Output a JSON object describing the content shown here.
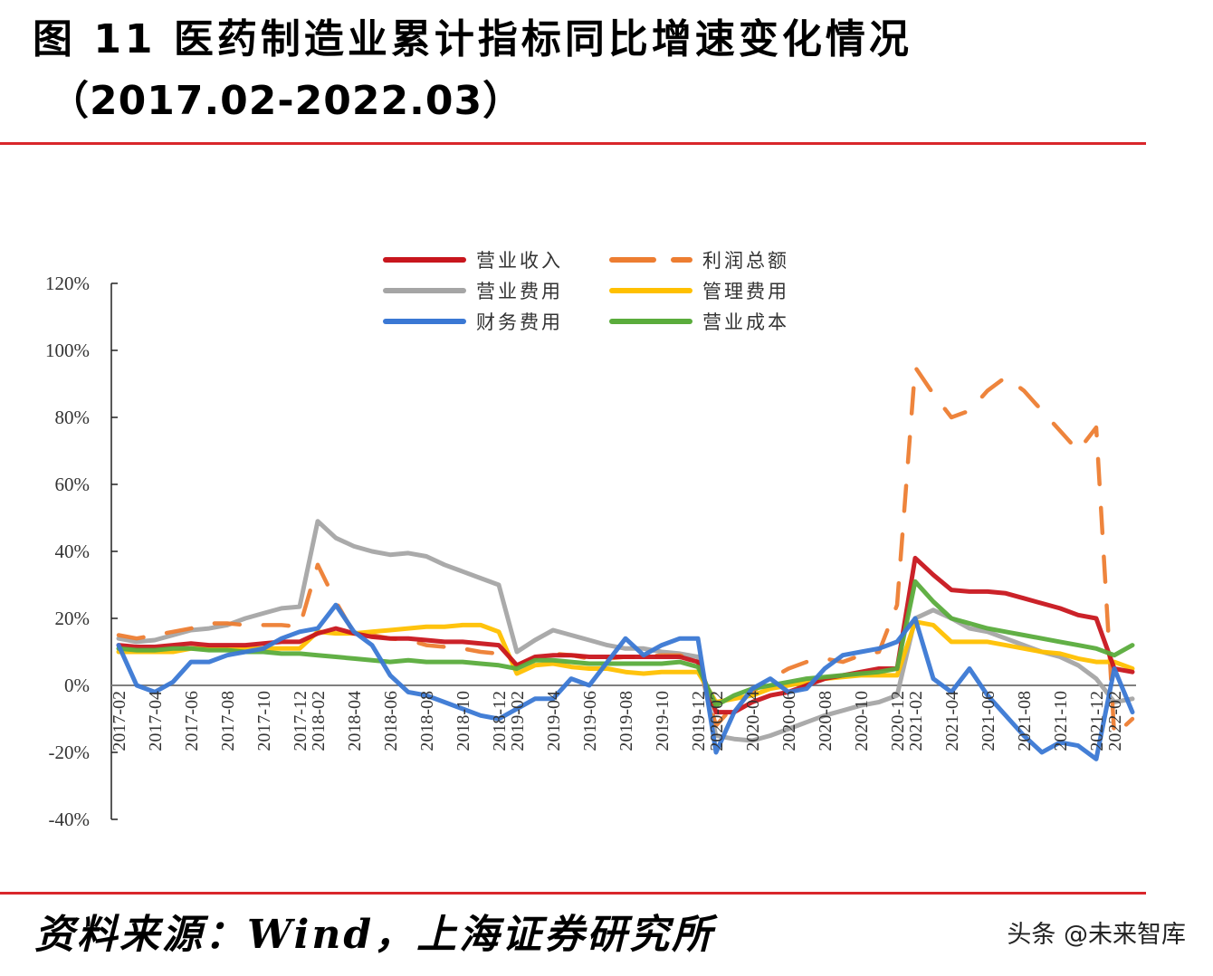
{
  "header": {
    "title_line1": "图 11 医药制造业累计指标同比增速变化情况",
    "title_line2": "（2017.02-2022.03）"
  },
  "footer": {
    "source": "资料来源：Wind，上海证券研究所",
    "watermark": "头条 @未来智库"
  },
  "colors": {
    "rule": "#d9262b",
    "revenue": "#c8161d",
    "profit": "#ed7d31",
    "selling_expense": "#a5a5a5",
    "admin_expense": "#ffc000",
    "finance_expense": "#3a78d4",
    "operating_cost": "#5aac3c"
  },
  "chart_data": {
    "type": "line",
    "title": "医药制造业累计指标同比增速变化情况（2017.02-2022.03）",
    "xlabel": "",
    "ylabel": "",
    "ylim": [
      -40,
      120
    ],
    "yticks": [
      "120%",
      "100%",
      "80%",
      "60%",
      "40%",
      "20%",
      "0%",
      "-20%",
      "-40%"
    ],
    "grid": false,
    "legend_position": "top-center",
    "x": [
      "2017-02",
      "2017-03",
      "2017-04",
      "2017-05",
      "2017-06",
      "2017-07",
      "2017-08",
      "2017-09",
      "2017-10",
      "2017-11",
      "2017-12",
      "2018-02",
      "2018-03",
      "2018-04",
      "2018-05",
      "2018-06",
      "2018-07",
      "2018-08",
      "2018-09",
      "2018-10",
      "2018-11",
      "2018-12",
      "2019-02",
      "2019-03",
      "2019-04",
      "2019-05",
      "2019-06",
      "2019-07",
      "2019-08",
      "2019-09",
      "2019-10",
      "2019-11",
      "2019-12",
      "2020-02",
      "2020-03",
      "2020-04",
      "2020-05",
      "2020-06",
      "2020-07",
      "2020-08",
      "2020-09",
      "2020-10",
      "2020-11",
      "2020-12",
      "2021-02",
      "2021-03",
      "2021-04",
      "2021-05",
      "2021-06",
      "2021-07",
      "2021-08",
      "2021-09",
      "2021-10",
      "2021-11",
      "2021-12",
      "2022-02",
      "2022-03"
    ],
    "xtick_labels": [
      "2017-02",
      "2017-04",
      "2017-06",
      "2017-08",
      "2017-10",
      "2017-12",
      "2018-02",
      "2018-04",
      "2018-06",
      "2018-08",
      "2018-10",
      "2018-12",
      "2019-02",
      "2019-04",
      "2019-06",
      "2019-08",
      "2019-10",
      "2019-12",
      "2020-02",
      "2020-04",
      "2020-06",
      "2020-08",
      "2020-10",
      "2020-12",
      "2021-02",
      "2021-04",
      "2021-06",
      "2021-08",
      "2021-10",
      "2021-12",
      "2022-02"
    ],
    "series": [
      {
        "name": "营业收入",
        "style": "solid",
        "values": [
          12,
          11.5,
          11.5,
          12,
          12.5,
          12,
          12,
          12,
          12.5,
          13,
          13,
          15.5,
          17,
          15.5,
          14.5,
          14,
          14,
          13.5,
          13,
          13,
          12.5,
          12,
          6,
          8.5,
          9,
          9,
          8.5,
          8.5,
          8.5,
          8.5,
          8.5,
          8.5,
          7,
          -8,
          -8,
          -5,
          -3,
          -2,
          0,
          2,
          3,
          4,
          5,
          5,
          38,
          33,
          28.5,
          28,
          28,
          27.5,
          26,
          24.5,
          23,
          21,
          20,
          5,
          4
        ]
      },
      {
        "name": "利润总额",
        "style": "dashed",
        "values": [
          15,
          14,
          15,
          16,
          17,
          18.5,
          18.5,
          18,
          18,
          18,
          17.5,
          36,
          25,
          15.5,
          15,
          14,
          13.5,
          12,
          11.5,
          11,
          10,
          9.5,
          6,
          8,
          9.5,
          9,
          8,
          8,
          8.5,
          8.5,
          9,
          9,
          7,
          -12,
          -6,
          -2,
          2,
          5,
          7,
          8,
          7,
          9,
          10,
          24,
          95,
          87,
          80,
          82,
          88,
          92,
          88,
          82,
          76,
          70,
          77,
          -15,
          -10
        ]
      },
      {
        "name": "营业费用",
        "style": "solid",
        "values": [
          14,
          13,
          13.5,
          15,
          16.5,
          17,
          18,
          20,
          21.5,
          23,
          23.5,
          49,
          44,
          41.5,
          40,
          39,
          39.5,
          38.5,
          36,
          34,
          32,
          30,
          10,
          13.5,
          16.5,
          15,
          13.5,
          12,
          11,
          11,
          10,
          9.5,
          8.5,
          -15,
          -16,
          -16.5,
          -15,
          -13,
          -11,
          -9,
          -7.5,
          -6,
          -5,
          -3,
          20,
          22.5,
          20,
          17,
          16,
          14,
          12,
          10,
          8.5,
          6,
          2,
          -5,
          -4
        ]
      },
      {
        "name": "管理费用",
        "style": "solid",
        "values": [
          10,
          10,
          10,
          10,
          11,
          11,
          11,
          11,
          11,
          11,
          11,
          16,
          15.5,
          15.5,
          16,
          16.5,
          17,
          17.5,
          17.5,
          18,
          18,
          16,
          3.5,
          6,
          6.5,
          5.5,
          5,
          5,
          4,
          3.5,
          4,
          4,
          4,
          -5,
          -4,
          -3,
          -1,
          0,
          1,
          2,
          2.5,
          3,
          3,
          3,
          19,
          18,
          13,
          13,
          13,
          12,
          11,
          10,
          9.5,
          8,
          7,
          7,
          5
        ]
      },
      {
        "name": "财务费用",
        "style": "solid",
        "values": [
          12,
          0,
          -2,
          1,
          7,
          7,
          9,
          10,
          11,
          14,
          16,
          17,
          24,
          16,
          12,
          3,
          -2,
          -3,
          -5,
          -7,
          -9,
          -10,
          -7,
          -4,
          -4,
          2,
          0,
          7,
          14,
          9,
          12,
          14,
          14,
          -20,
          -8,
          -1,
          2,
          -2,
          -1,
          5,
          9,
          10,
          11,
          13,
          20,
          2,
          -2,
          5,
          -3,
          -9,
          -15,
          -20,
          -17,
          -18,
          -22,
          5,
          -8
        ]
      },
      {
        "name": "营业成本",
        "style": "solid",
        "values": [
          11,
          10.5,
          10.5,
          11,
          11,
          10.5,
          10.5,
          10,
          10,
          9.5,
          9.5,
          9,
          8.5,
          8,
          7.5,
          7,
          7.5,
          7,
          7,
          7,
          6.5,
          6,
          5,
          7.5,
          7.5,
          7,
          6.5,
          6.5,
          6.5,
          6.5,
          6.5,
          7,
          5.5,
          -6,
          -3,
          -1,
          0,
          1,
          2,
          2.5,
          3,
          3.5,
          4,
          5,
          31,
          25,
          20,
          18.5,
          17,
          16,
          15,
          14,
          13,
          12,
          11,
          9,
          12
        ]
      }
    ]
  },
  "legend": {
    "items": [
      {
        "label": "营业收入"
      },
      {
        "label": "利润总额"
      },
      {
        "label": "营业费用"
      },
      {
        "label": "管理费用"
      },
      {
        "label": "财务费用"
      },
      {
        "label": "营业成本"
      }
    ]
  }
}
